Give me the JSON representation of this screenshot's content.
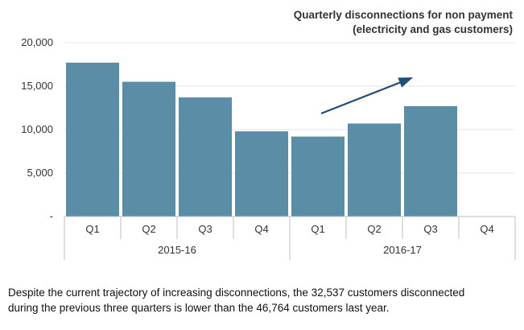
{
  "chart_data": {
    "type": "bar",
    "title_lines": [
      "Quarterly disconnections for non payment",
      "(electricity and gas customers)"
    ],
    "categories": [
      "Q1",
      "Q2",
      "Q3",
      "Q4",
      "Q1",
      "Q2",
      "Q3",
      "Q4"
    ],
    "groups": [
      {
        "label": "2015-16",
        "categories": [
          "Q1",
          "Q2",
          "Q3",
          "Q4"
        ]
      },
      {
        "label": "2016-17",
        "categories": [
          "Q1",
          "Q2",
          "Q3",
          "Q4"
        ]
      }
    ],
    "values": [
      17700,
      15500,
      13700,
      9800,
      9200,
      10700,
      12700,
      null
    ],
    "yticks": [
      "-",
      "5,000",
      "10,000",
      "15,000",
      "20,000"
    ],
    "ylim": [
      0,
      20000
    ],
    "grid": true,
    "bar_color": "#5a8ea6",
    "annotation": {
      "type": "trend-arrow",
      "color": "#1f4e79"
    }
  },
  "caption_lines": [
    "Despite the current trajectory of increasing disconnections, the 32,537 customers disconnected",
    "during the previous three quarters is lower than the 46,764 customers last year."
  ]
}
